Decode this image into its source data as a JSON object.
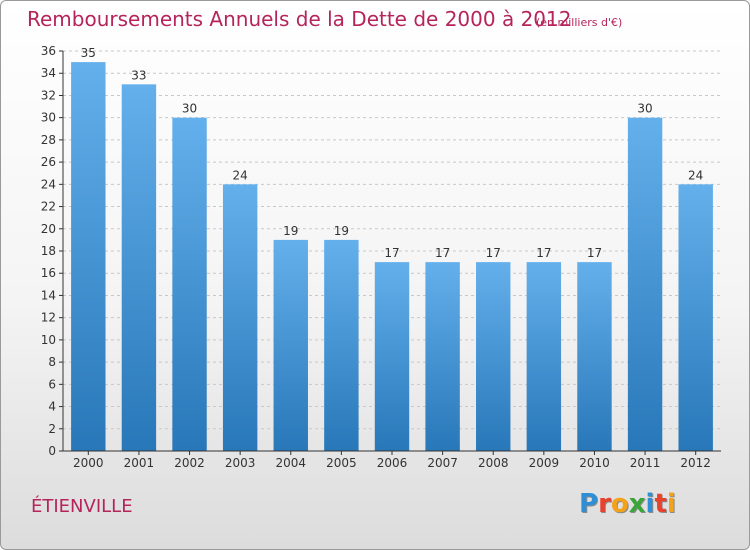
{
  "header": {
    "title": "Remboursements Annuels de la Dette de 2000 à 2012",
    "subtitle": "(en milliers d'€)"
  },
  "footer": {
    "place": "ÉTIENVILLE",
    "logo_text": "Proxiti",
    "logo_colors": [
      "#2e8fd6",
      "#e8412c",
      "#f3a21b",
      "#3aa63a",
      "#2e8fd6",
      "#e8412c",
      "#f3a21b"
    ]
  },
  "colors": {
    "bar_top": "#64b0ec",
    "bar_bottom": "#2877b8",
    "axis": "#333333",
    "grid": "#c8c8c8",
    "accent": "#b5245a"
  },
  "chart_data": {
    "type": "bar",
    "categories": [
      "2000",
      "2001",
      "2002",
      "2003",
      "2004",
      "2005",
      "2006",
      "2007",
      "2008",
      "2009",
      "2010",
      "2011",
      "2012"
    ],
    "values": [
      35,
      33,
      30,
      24,
      19,
      19,
      17,
      17,
      17,
      17,
      17,
      30,
      24
    ],
    "title": "Remboursements Annuels de la Dette de 2000 à 2012",
    "xlabel": "",
    "ylabel": "",
    "ylim": [
      0,
      36
    ],
    "yticks": [
      0,
      2,
      4,
      6,
      8,
      10,
      12,
      14,
      16,
      18,
      20,
      22,
      24,
      26,
      28,
      30,
      32,
      34,
      36
    ],
    "grid": true,
    "legend": "none"
  }
}
